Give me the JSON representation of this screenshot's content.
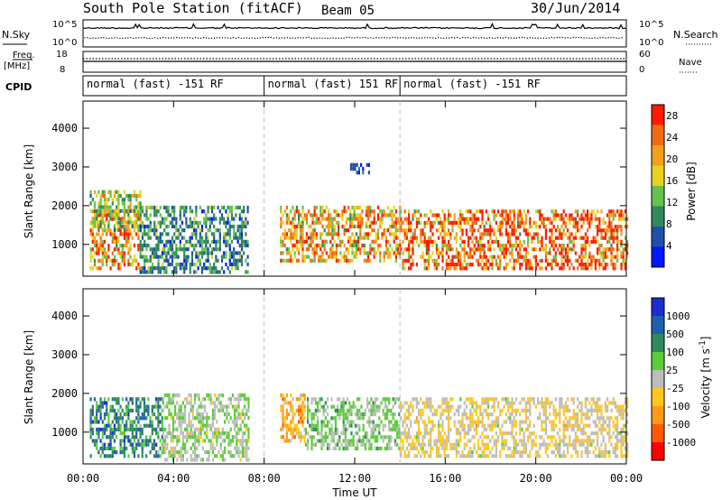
{
  "header": {
    "title": "South Pole Station (fitACF)",
    "beam": "Beam 05",
    "date": "30/Jun/2014"
  },
  "top_panels": {
    "nsky_label": "N.Sky",
    "nsearch_label": "N.Search",
    "noise_ticks": [
      "10^5",
      "10^0"
    ],
    "freq_label": "Freq.",
    "freq_unit": "[MHz]",
    "freq_ticks": [
      "18",
      "8"
    ],
    "nave_label": "Nave",
    "nave_ticks": [
      "60",
      "0"
    ],
    "cpid_label": "CPID"
  },
  "cpid_segments": [
    {
      "label": "normal (fast) -151 RF",
      "start_hour": 0,
      "end_hour": 8
    },
    {
      "label": "normal (fast) 151 RF",
      "start_hour": 8,
      "end_hour": 14
    },
    {
      "label": "normal (fast) -151 RF",
      "start_hour": 14,
      "end_hour": 24
    }
  ],
  "colors": {
    "power_scale": [
      "#0018ff",
      "#1f4fa8",
      "#2e8a5a",
      "#66c24a",
      "#e8d21e",
      "#f2a01a",
      "#f26a14",
      "#ff1a00"
    ],
    "velocity_scale": [
      "#ff0000",
      "#ff5a00",
      "#ff9a1a",
      "#ffc81e",
      "#bdbdbd",
      "#5ccc3a",
      "#2e8a5a",
      "#1f5fb0",
      "#1a2ed0"
    ]
  },
  "chart_data": [
    {
      "type": "heatmap",
      "name": "power",
      "ylabel": "Slant Range [km]",
      "xlabel": "Time UT",
      "x_ticks": [
        "00:00",
        "04:00",
        "08:00",
        "12:00",
        "16:00",
        "20:00",
        "00:00"
      ],
      "x_range_hours": [
        0,
        24
      ],
      "y_ticks": [
        1000,
        2000,
        3000,
        4000
      ],
      "ylim": [
        180,
        4700
      ],
      "colorbar": {
        "label": "Power [dB]",
        "ticks": [
          4,
          8,
          12,
          16,
          20,
          24,
          28
        ],
        "range": [
          0,
          30
        ]
      },
      "series": [
        {
          "time_hours": [
            0.3,
            2.5
          ],
          "range_km": [
            400,
            1900
          ],
          "value_db": 22
        },
        {
          "time_hours": [
            0.3,
            2.5
          ],
          "range_km": [
            1400,
            2400
          ],
          "value_db": 14
        },
        {
          "time_hours": [
            2.5,
            7.3
          ],
          "range_km": [
            300,
            2000
          ],
          "value_db": 9
        },
        {
          "time_hours": [
            8.7,
            14.0
          ],
          "range_km": [
            600,
            2000
          ],
          "value_db": 20
        },
        {
          "time_hours": [
            14.0,
            24.0
          ],
          "range_km": [
            400,
            1900
          ],
          "value_db": 24
        },
        {
          "time_hours": [
            11.8,
            12.6
          ],
          "range_km": [
            2900,
            3100
          ],
          "value_db": 6
        }
      ]
    },
    {
      "type": "heatmap",
      "name": "velocity",
      "ylabel": "Slant Range [km]",
      "xlabel": "Time UT",
      "x_ticks": [
        "00:00",
        "04:00",
        "08:00",
        "12:00",
        "16:00",
        "20:00",
        "00:00"
      ],
      "x_range_hours": [
        0,
        24
      ],
      "y_ticks": [
        1000,
        2000,
        3000,
        4000
      ],
      "ylim": [
        180,
        4700
      ],
      "colorbar": {
        "label": "Velocity [m s-1]",
        "ticks": [
          1000,
          500,
          100,
          25,
          -25,
          -100,
          -500,
          -1000
        ],
        "range": [
          -1200,
          1200
        ]
      },
      "series": [
        {
          "time_hours": [
            0.3,
            3.5
          ],
          "range_km": [
            400,
            1900
          ],
          "value_ms": 600
        },
        {
          "time_hours": [
            3.5,
            7.3
          ],
          "range_km": [
            300,
            2000
          ],
          "value_ms": 80
        },
        {
          "time_hours": [
            8.7,
            9.8
          ],
          "range_km": [
            800,
            2000
          ],
          "value_ms": -400
        },
        {
          "time_hours": [
            9.8,
            14.0
          ],
          "range_km": [
            600,
            1900
          ],
          "value_ms": 200
        },
        {
          "time_hours": [
            14.0,
            24.0
          ],
          "range_km": [
            400,
            1900
          ],
          "value_ms": -120
        }
      ]
    }
  ]
}
